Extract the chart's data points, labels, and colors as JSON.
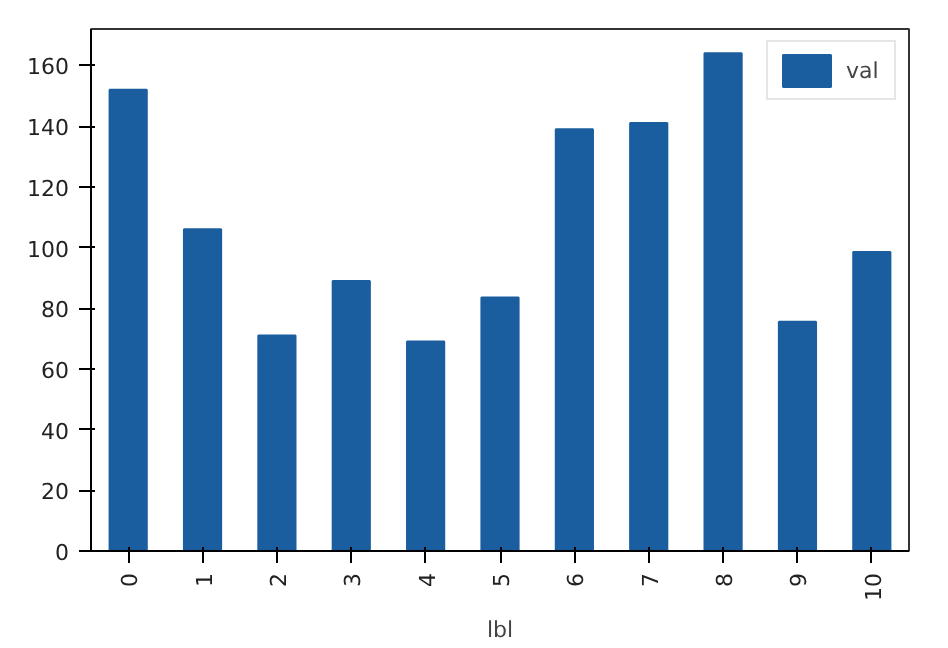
{
  "chart_data": {
    "type": "bar",
    "xlabel": "lbl",
    "categories": [
      "0",
      "1",
      "2",
      "3",
      "4",
      "5",
      "6",
      "7",
      "8",
      "9",
      "10"
    ],
    "series": [
      {
        "name": "val",
        "color": "#1a5e9f",
        "values": [
          152,
          106,
          71,
          89,
          69,
          83.5,
          139,
          141,
          164,
          75.5,
          98.5
        ]
      }
    ],
    "ylim": [
      0,
      172
    ],
    "yticks": [
      0,
      20,
      40,
      60,
      80,
      100,
      120,
      140,
      160
    ],
    "grid": false,
    "legend": "top right"
  }
}
